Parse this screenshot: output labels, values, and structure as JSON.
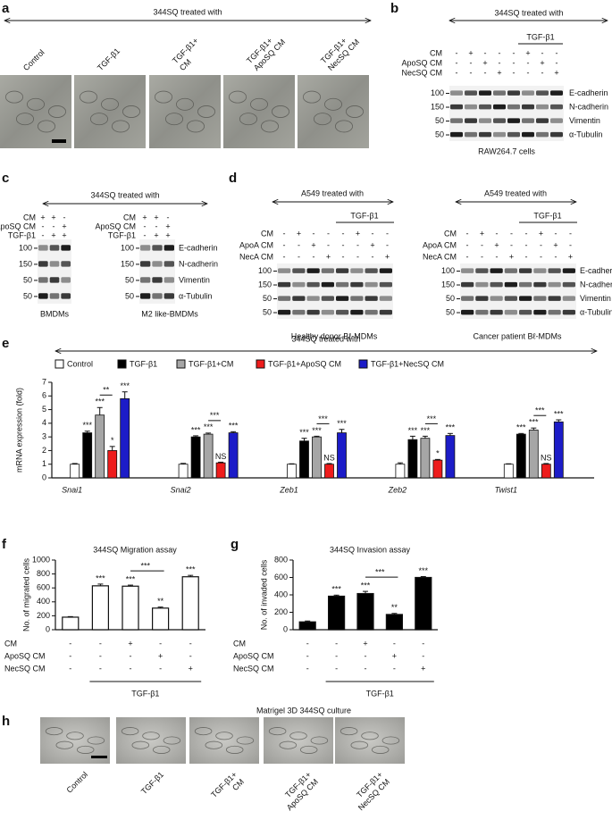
{
  "panels": {
    "a": {
      "label": "a",
      "title": "344SQ treated with",
      "columns": [
        [
          "Control"
        ],
        [
          "TGF-β1"
        ],
        [
          "TGF-β1+",
          "CM"
        ],
        [
          "TGF-β1+",
          "ApoSQ CM"
        ],
        [
          "TGF-β1+",
          "NecSQ CM"
        ]
      ]
    },
    "b": {
      "label": "b",
      "title": "344SQ treated with",
      "treatment": "TGF-β1",
      "rows": [
        {
          "name": "CM",
          "signs": [
            "-",
            "+",
            "-",
            "-",
            "-",
            "+",
            "-",
            "-"
          ]
        },
        {
          "name": "ApoSQ CM",
          "signs": [
            "-",
            "-",
            "+",
            "-",
            "-",
            "-",
            "+",
            "-"
          ]
        },
        {
          "name": "NecSQ CM",
          "signs": [
            "-",
            "-",
            "-",
            "+",
            "-",
            "-",
            "-",
            "+"
          ]
        }
      ],
      "markers": [
        100,
        150,
        50,
        50
      ],
      "proteins": [
        "E-cadherin",
        "N-cadherin",
        "Vimentin",
        "α-Tubulin"
      ],
      "caption": "RAW264.7 cells"
    },
    "c": {
      "label": "c",
      "title": "344SQ treated with",
      "blots": [
        {
          "rows": [
            {
              "name": "CM",
              "signs": [
                "+",
                "+",
                "-"
              ]
            },
            {
              "name": "ApoSQ CM",
              "signs": [
                "-",
                "-",
                "+"
              ]
            },
            {
              "name": "TGF-β1",
              "signs": [
                "-",
                "+",
                "+"
              ]
            }
          ],
          "markers": [
            100,
            150,
            50,
            50
          ],
          "caption": "BMDMs"
        },
        {
          "rows": [
            {
              "name": "CM",
              "signs": [
                "+",
                "+",
                "-"
              ]
            },
            {
              "name": "ApoSQ CM",
              "signs": [
                "-",
                "-",
                "+"
              ]
            },
            {
              "name": "TGF-β1",
              "signs": [
                "-",
                "+",
                "+"
              ]
            }
          ],
          "markers": [
            100,
            150,
            50,
            50
          ],
          "proteins": [
            "E-cadherin",
            "N-cadherin",
            "Vimentin",
            "α-Tubulin"
          ],
          "caption": "M2 like-BMDMs"
        }
      ]
    },
    "d": {
      "label": "d",
      "blots": [
        {
          "title": "A549 treated with",
          "treatment": "TGF-β1",
          "rows": [
            {
              "name": "CM",
              "signs": [
                "-",
                "+",
                "-",
                "-",
                "-",
                "+",
                "-",
                "-"
              ]
            },
            {
              "name": "ApoA CM",
              "signs": [
                "-",
                "-",
                "+",
                "-",
                "-",
                "-",
                "+",
                "-"
              ]
            },
            {
              "name": "NecA CM",
              "signs": [
                "-",
                "-",
                "-",
                "+",
                "-",
                "-",
                "-",
                "+"
              ]
            }
          ],
          "markers": [
            100,
            150,
            50,
            50
          ],
          "caption": "Healthy donor Bℓ-MDMs"
        },
        {
          "title": "A549 treated with",
          "treatment": "TGF-β1",
          "rows": [
            {
              "name": "CM",
              "signs": [
                "-",
                "+",
                "-",
                "-",
                "-",
                "+",
                "-",
                "-"
              ]
            },
            {
              "name": "ApoA CM",
              "signs": [
                "-",
                "-",
                "+",
                "-",
                "-",
                "-",
                "+",
                "-"
              ]
            },
            {
              "name": "NecA CM",
              "signs": [
                "-",
                "-",
                "-",
                "+",
                "-",
                "-",
                "-",
                "+"
              ]
            }
          ],
          "markers": [
            100,
            150,
            50,
            50
          ],
          "proteins": [
            "E-cadherin",
            "N-cadherin",
            "Vimentin",
            "α-Tubulin"
          ],
          "caption": "Cancer patient Bℓ-MDMs"
        }
      ]
    },
    "h": {
      "label": "h",
      "title": "Matrigel 3D 344SQ culture",
      "columns": [
        [
          "Control"
        ],
        [
          "TGF-β1"
        ],
        [
          "TGF-β1+",
          "CM"
        ],
        [
          "TGF-β1+",
          "ApoSQ CM"
        ],
        [
          "TGF-β1+",
          "NecSQ CM"
        ]
      ]
    }
  },
  "chart_data": [
    {
      "type": "grouped-bar",
      "label": "e",
      "title": "344SQ treated with",
      "ylabel": "mRNA expression (fold)",
      "categories": [
        "Snai1",
        "Snai2",
        "Zeb1",
        "Zeb2",
        "Twist1"
      ],
      "ylim": [
        0,
        7
      ],
      "yticks": [
        0,
        1,
        2,
        3,
        4,
        5,
        6,
        7
      ],
      "series": [
        {
          "name": "Control",
          "color": "#ffffff",
          "values": [
            1,
            1,
            1,
            1,
            1
          ],
          "errors": [
            0.05,
            0.06,
            0.03,
            0.1,
            0.03
          ],
          "significance": [
            null,
            null,
            null,
            null,
            null
          ]
        },
        {
          "name": "TGF-β1",
          "color": "#000000",
          "values": [
            3.3,
            3.0,
            2.7,
            2.8,
            3.2
          ],
          "errors": [
            0.12,
            0.08,
            0.2,
            0.25,
            0.05
          ],
          "significance": [
            "***",
            "***",
            "***",
            "***",
            "***"
          ]
        },
        {
          "name": "TGF-β1+CM",
          "color": "#a6a6a6",
          "values": [
            4.6,
            3.2,
            3.0,
            2.9,
            3.5
          ],
          "errors": [
            0.55,
            0.08,
            0.05,
            0.15,
            0.15
          ],
          "significance": [
            "***",
            "***",
            "***",
            "***",
            "***"
          ]
        },
        {
          "name": "TGF-β1+ApoSQ CM",
          "color": "#ee1c1c",
          "values": [
            2.0,
            1.1,
            1.0,
            1.3,
            1.0
          ],
          "errors": [
            0.3,
            0.05,
            0.05,
            0.05,
            0.05
          ],
          "significance": [
            "*",
            "NS",
            "NS",
            "*",
            "NS"
          ]
        },
        {
          "name": "TGF-β1+NecSQ CM",
          "color": "#1c1cc8",
          "values": [
            5.8,
            3.3,
            3.3,
            3.1,
            4.1
          ],
          "errors": [
            0.5,
            0.08,
            0.25,
            0.15,
            0.15
          ],
          "significance": [
            "***",
            "***",
            "***",
            "***",
            "***"
          ]
        }
      ],
      "comparisons": [
        "**",
        "***",
        "***",
        "***",
        "***"
      ]
    },
    {
      "type": "bar",
      "label": "f",
      "title": "344SQ Migration assay",
      "ylabel": "No. of migrated cells",
      "color": "#ffffff",
      "values": [
        180,
        630,
        625,
        310,
        760
      ],
      "errors": [
        8,
        25,
        15,
        15,
        20
      ],
      "significance": [
        null,
        "***",
        "***",
        "**",
        "***"
      ],
      "comparison": "***",
      "ylim": [
        0,
        1000
      ],
      "yticks": [
        0,
        200,
        400,
        600,
        800,
        1000
      ],
      "conditions": [
        {
          "name": "CM",
          "signs": [
            "-",
            "-",
            "+",
            "-",
            "-"
          ]
        },
        {
          "name": "ApoSQ CM",
          "signs": [
            "-",
            "-",
            "-",
            "+",
            "-"
          ]
        },
        {
          "name": "NecSQ CM",
          "signs": [
            "-",
            "-",
            "-",
            "-",
            "+"
          ]
        }
      ],
      "treatment": "TGF-β1"
    },
    {
      "type": "bar",
      "label": "g",
      "title": "344SQ Invasion assay",
      "ylabel": "No. of invaded cells",
      "color": "#000000",
      "values": [
        90,
        385,
        415,
        175,
        600
      ],
      "errors": [
        10,
        12,
        25,
        12,
        10
      ],
      "significance": [
        null,
        "***",
        "***",
        "**",
        "***"
      ],
      "comparison": "***",
      "ylim": [
        0,
        800
      ],
      "yticks": [
        0,
        200,
        400,
        600,
        800
      ],
      "conditions": [
        {
          "name": "CM",
          "signs": [
            "-",
            "-",
            "+",
            "-",
            "-"
          ]
        },
        {
          "name": "ApoSQ CM",
          "signs": [
            "-",
            "-",
            "-",
            "+",
            "-"
          ]
        },
        {
          "name": "NecSQ CM",
          "signs": [
            "-",
            "-",
            "-",
            "-",
            "+"
          ]
        }
      ],
      "treatment": "TGF-β1"
    }
  ]
}
